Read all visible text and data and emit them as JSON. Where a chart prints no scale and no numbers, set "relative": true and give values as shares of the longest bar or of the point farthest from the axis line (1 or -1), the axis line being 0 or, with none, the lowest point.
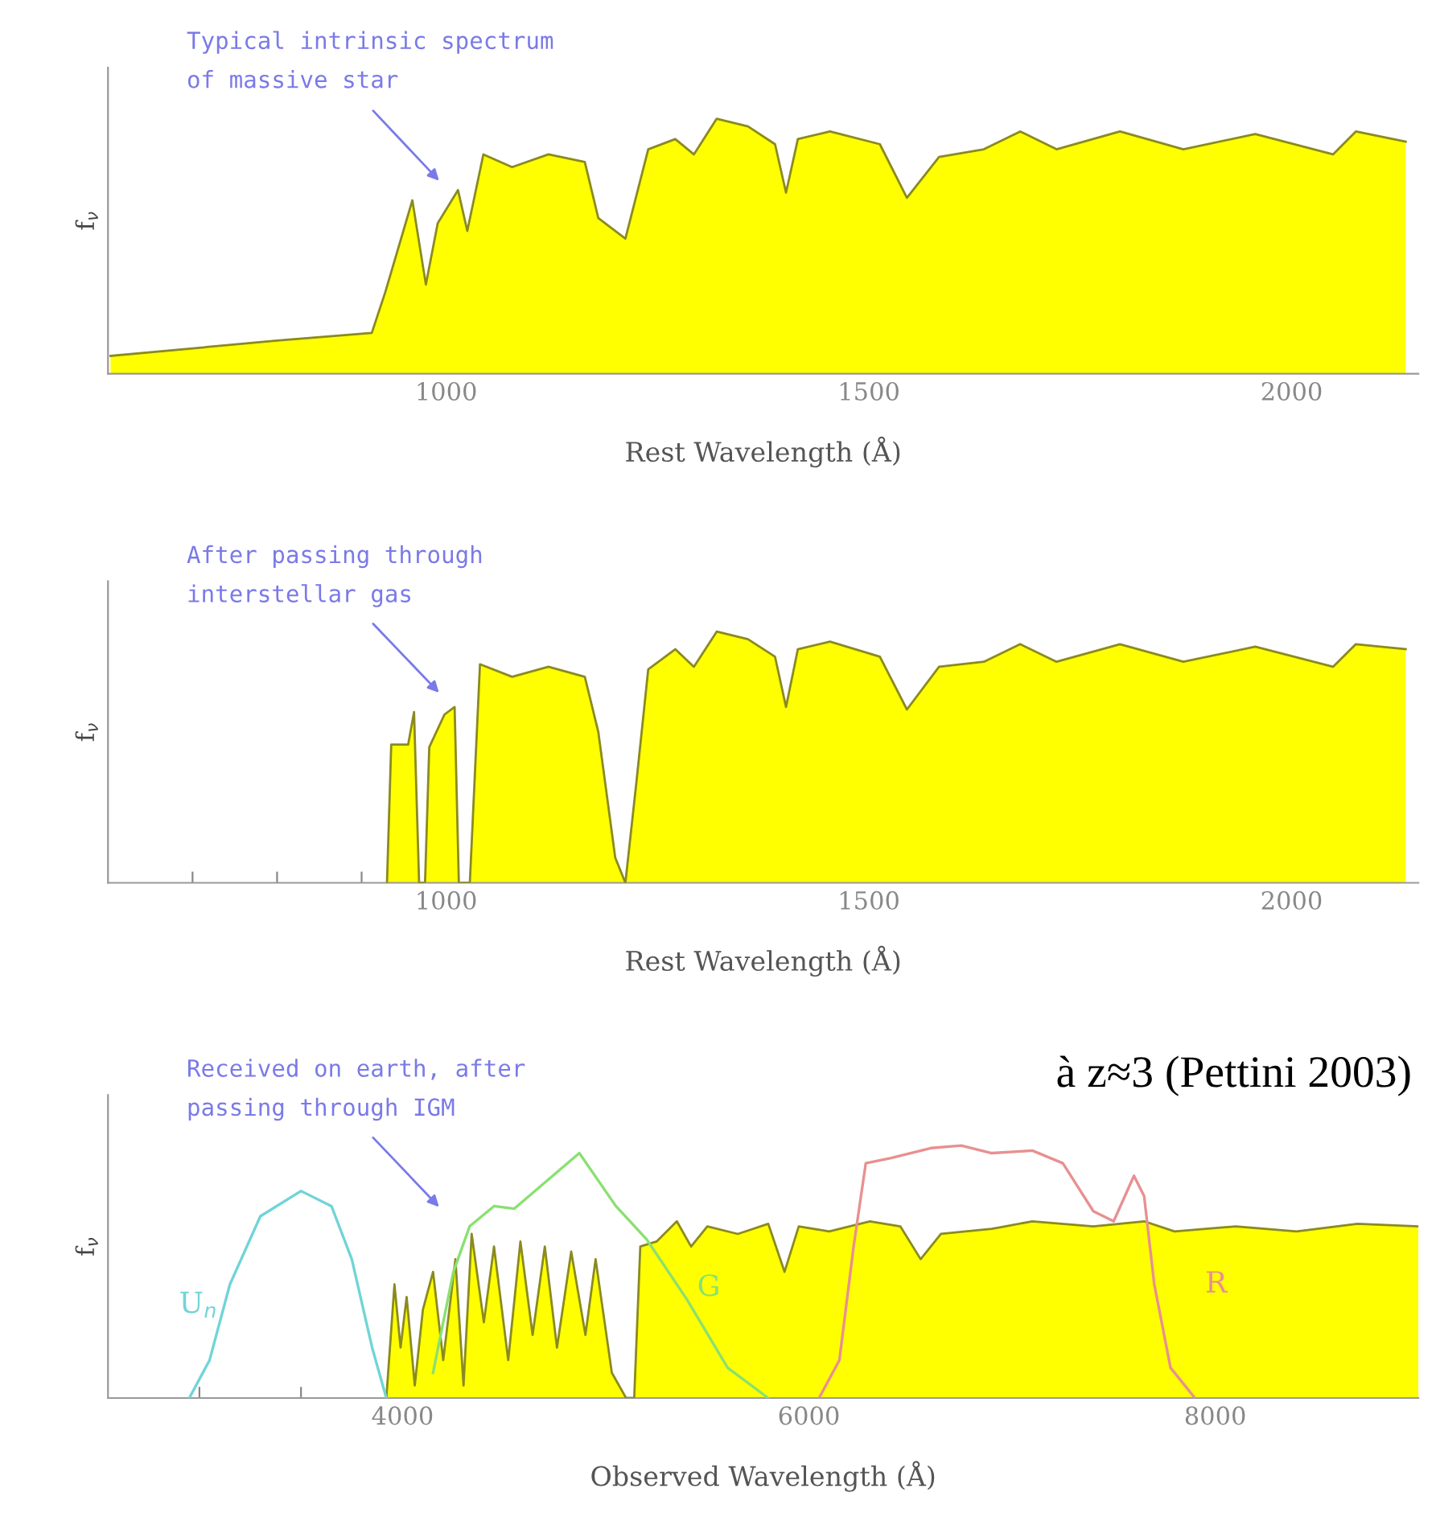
{
  "chart_data": [
    {
      "type": "area",
      "relative": true,
      "xlabel": "Rest Wavelength (Å)",
      "ylabel": "f$_{ν}$",
      "xlim": [
        600,
        2150
      ],
      "xticks": [
        {
          "value": 700,
          "label": null
        },
        {
          "value": 800,
          "label": null
        },
        {
          "value": 900,
          "label": null
        },
        1000,
        {
          "value": 1100,
          "label": null
        },
        {
          "value": 1200,
          "label": null
        },
        {
          "value": 1300,
          "label": null
        },
        {
          "value": 1400,
          "label": null
        },
        1500,
        {
          "value": 1600,
          "label": null
        },
        {
          "value": 1700,
          "label": null
        },
        {
          "value": 1800,
          "label": null
        },
        {
          "value": 1900,
          "label": null
        },
        2000,
        {
          "value": 2100,
          "label": null
        }
      ],
      "grid": false,
      "legend": false,
      "annotations": [
        "Typical intrinsic spectrum\nof massive star"
      ],
      "series": [
        {
          "color": "#ffff00",
          "x": [
            603,
            800,
            912,
            928,
            960,
            976,
            990,
            1014,
            1025,
            1044,
            1078,
            1121,
            1164,
            1180,
            1212,
            1239,
            1271,
            1293,
            1320,
            1357,
            1389,
            1402,
            1416,
            1454,
            1513,
            1545,
            1583,
            1636,
            1679,
            1722,
            1797,
            1872,
            1957,
            2049,
            2076,
            2135
          ],
          "values": [
            0.07,
            0.13,
            0.16,
            0.32,
            0.68,
            0.35,
            0.59,
            0.72,
            0.56,
            0.86,
            0.81,
            0.86,
            0.83,
            0.61,
            0.53,
            0.88,
            0.92,
            0.86,
            1.0,
            0.97,
            0.9,
            0.71,
            0.92,
            0.95,
            0.9,
            0.69,
            0.85,
            0.88,
            0.95,
            0.88,
            0.95,
            0.88,
            0.94,
            0.86,
            0.95,
            0.91
          ]
        }
      ]
    },
    {
      "type": "area",
      "relative": true,
      "xlabel": "Rest Wavelength (Å)",
      "ylabel": "f$_{ν}$",
      "xlim": [
        600,
        2150
      ],
      "xticks": [
        {
          "value": 700,
          "label": null
        },
        {
          "value": 800,
          "label": null
        },
        {
          "value": 900,
          "label": null
        },
        1000,
        {
          "value": 1100,
          "label": null
        },
        {
          "value": 1200,
          "label": null
        },
        {
          "value": 1300,
          "label": null
        },
        {
          "value": 1400,
          "label": null
        },
        1500,
        {
          "value": 1600,
          "label": null
        },
        {
          "value": 1700,
          "label": null
        },
        {
          "value": 1800,
          "label": null
        },
        {
          "value": 1900,
          "label": null
        },
        2000,
        {
          "value": 2100,
          "label": null
        }
      ],
      "grid": false,
      "legend": false,
      "annotations": [
        "After passing through\ninterstellar gas"
      ],
      "series": [
        {
          "color": "#ffff00",
          "x": [
            930,
            935,
            955,
            962,
            968,
            975,
            980,
            998,
            1010,
            1015,
            1028,
            1040,
            1078,
            1121,
            1164,
            1180,
            1200,
            1212,
            1225,
            1239,
            1271,
            1293,
            1320,
            1357,
            1389,
            1402,
            1416,
            1454,
            1513,
            1545,
            1583,
            1636,
            1679,
            1722,
            1797,
            1872,
            1957,
            2049,
            2076,
            2135
          ],
          "values": [
            0,
            0.55,
            0.55,
            0.68,
            0,
            0,
            0.54,
            0.67,
            0.7,
            0,
            0,
            0.87,
            0.82,
            0.86,
            0.82,
            0.6,
            0.1,
            0,
            0.4,
            0.85,
            0.93,
            0.86,
            1.0,
            0.97,
            0.9,
            0.7,
            0.93,
            0.96,
            0.9,
            0.69,
            0.86,
            0.88,
            0.95,
            0.88,
            0.95,
            0.88,
            0.94,
            0.86,
            0.95,
            0.93
          ]
        }
      ]
    },
    {
      "type": "area",
      "relative": true,
      "xlabel": "Observed Wavelength (Å)",
      "ylabel": "f$_{ν}$",
      "xlim": [
        2550,
        9000
      ],
      "xticks": [
        {
          "value": 3000,
          "label": null
        },
        {
          "value": 3500,
          "label": null
        },
        4000,
        {
          "value": 4500,
          "label": null
        },
        {
          "value": 5000,
          "label": null
        },
        {
          "value": 5500,
          "label": null
        },
        6000,
        {
          "value": 6500,
          "label": null
        },
        {
          "value": 7000,
          "label": null
        },
        {
          "value": 7500,
          "label": null
        },
        8000,
        {
          "value": 8500,
          "label": null
        }
      ],
      "grid": false,
      "legend": false,
      "annotations": [
        "Received on earth, after\npassing through IGM",
        "à z≈3 (Pettini 2003)"
      ],
      "series": [
        {
          "color": "#ffff00",
          "x": [
            3920,
            3960,
            3990,
            4020,
            4060,
            4100,
            4150,
            4200,
            4260,
            4300,
            4340,
            4400,
            4450,
            4520,
            4580,
            4640,
            4700,
            4760,
            4830,
            4900,
            4950,
            5030,
            5100,
            5140,
            5170,
            5250,
            5350,
            5420,
            5500,
            5650,
            5800,
            5880,
            5950,
            6100,
            6300,
            6450,
            6550,
            6650,
            6900,
            7100,
            7400,
            7650,
            7800,
            8100,
            8400,
            8700,
            9000
          ],
          "values": [
            0,
            0.45,
            0.2,
            0.4,
            0.05,
            0.35,
            0.5,
            0.15,
            0.55,
            0.05,
            0.65,
            0.3,
            0.6,
            0.15,
            0.62,
            0.25,
            0.6,
            0.2,
            0.58,
            0.25,
            0.55,
            0.1,
            0,
            0,
            0.6,
            0.62,
            0.7,
            0.6,
            0.68,
            0.65,
            0.69,
            0.5,
            0.68,
            0.66,
            0.7,
            0.68,
            0.55,
            0.65,
            0.67,
            0.7,
            0.68,
            0.7,
            0.66,
            0.68,
            0.66,
            0.69,
            0.68
          ]
        },
        {
          "type": "line",
          "name": "U$_{n}$",
          "color": "#70d4d8",
          "x": [
            2950,
            3050,
            3150,
            3300,
            3500,
            3650,
            3750,
            3850,
            3920
          ],
          "values": [
            0,
            0.15,
            0.45,
            0.72,
            0.82,
            0.76,
            0.55,
            0.2,
            0
          ]
        },
        {
          "type": "line",
          "name": "G",
          "color": "#8ae070",
          "x": [
            4150,
            4250,
            4330,
            4450,
            4550,
            4870,
            5050,
            5200,
            5400,
            5600,
            5800
          ],
          "values": [
            0.1,
            0.5,
            0.68,
            0.76,
            0.75,
            0.97,
            0.76,
            0.63,
            0.39,
            0.12,
            0
          ]
        },
        {
          "type": "line",
          "name": "R",
          "color": "#e89090",
          "x": [
            6050,
            6150,
            6220,
            6280,
            6400,
            6600,
            6750,
            6900,
            7100,
            7250,
            7400,
            7500,
            7600,
            7650,
            7700,
            7780,
            7900
          ],
          "values": [
            0,
            0.15,
            0.6,
            0.93,
            0.95,
            0.99,
            1.0,
            0.97,
            0.98,
            0.93,
            0.74,
            0.7,
            0.88,
            0.8,
            0.45,
            0.12,
            0
          ]
        }
      ]
    }
  ]
}
